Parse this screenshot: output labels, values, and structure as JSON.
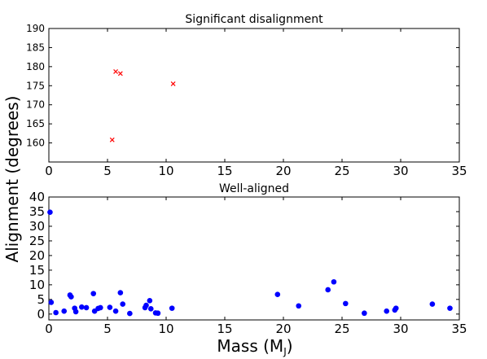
{
  "figure": {
    "ylabel": "Alignment (degrees)",
    "xlabel": "Mass (M",
    "xlabel_sub": "J",
    "xlabel_close": ")"
  },
  "chart_data": [
    {
      "type": "scatter",
      "title": "Significant disalignment",
      "xlim": [
        0,
        35
      ],
      "ylim": [
        155,
        190
      ],
      "xticks": [
        0,
        5,
        10,
        15,
        20,
        25,
        30,
        35
      ],
      "yticks": [
        160,
        165,
        170,
        175,
        180,
        185,
        190
      ],
      "grid": false,
      "marker": "x",
      "color": "#ff0000",
      "series": [
        {
          "x": [
            5.4,
            5.7,
            6.1,
            10.6
          ],
          "y": [
            160.8,
            178.7,
            178.2,
            175.5
          ]
        }
      ]
    },
    {
      "type": "scatter",
      "title": "Well-aligned",
      "xlim": [
        0,
        35
      ],
      "ylim": [
        -2,
        40
      ],
      "xticks": [
        0,
        5,
        10,
        15,
        20,
        25,
        30,
        35
      ],
      "yticks": [
        0,
        5,
        10,
        15,
        20,
        25,
        30,
        35,
        40
      ],
      "grid": false,
      "marker": "o",
      "color": "#0000ff",
      "series": [
        {
          "x": [
            0.1,
            0.2,
            0.6,
            1.3,
            1.8,
            1.9,
            2.2,
            2.3,
            2.8,
            3.2,
            3.8,
            3.9,
            4.2,
            4.4,
            5.2,
            5.7,
            6.1,
            6.3,
            6.9,
            8.2,
            8.3,
            8.6,
            8.7,
            9.1,
            9.3,
            10.5,
            19.5,
            21.3,
            23.8,
            24.3,
            25.3,
            26.9,
            28.8,
            29.5,
            29.6,
            32.7,
            34.2
          ],
          "y": [
            34.8,
            4.0,
            0.5,
            1.0,
            6.5,
            5.9,
            2.0,
            0.8,
            2.4,
            2.2,
            7.0,
            1.0,
            1.9,
            2.2,
            2.3,
            1.0,
            7.3,
            3.4,
            0.2,
            2.2,
            3.0,
            4.6,
            1.8,
            0.4,
            0.3,
            2.0,
            6.7,
            2.8,
            8.3,
            11.0,
            3.6,
            0.3,
            1.0,
            1.4,
            2.0,
            3.4,
            2.0
          ]
        }
      ]
    }
  ]
}
